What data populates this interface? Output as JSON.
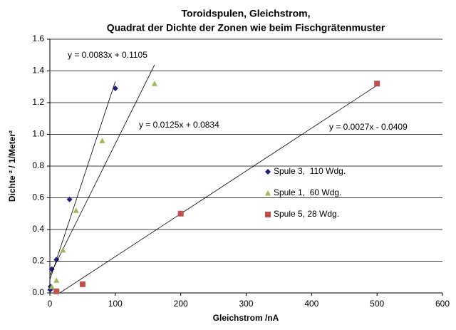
{
  "chart_data": {
    "type": "scatter",
    "title": [
      "Toroidspulen, Gleichstrom,",
      "Quadrat der Dichte der Zonen wie beim Fischgrätenmuster"
    ],
    "x_label": "Gleichstrom /nA",
    "y_label": "Dichte ² / 1/Meter²",
    "xlim": [
      0,
      600
    ],
    "xticks": [
      0,
      100,
      200,
      300,
      400,
      500,
      600
    ],
    "ylim": [
      0,
      1.6
    ],
    "yticks": [
      {
        "value": 0,
        "label": "0.0"
      },
      0.2,
      0.4,
      0.6,
      0.8,
      {
        "value": 1,
        "label": "1.0"
      },
      1.2,
      1.4,
      1.6
    ],
    "grid": true,
    "series": [
      {
        "name": "Spule 3,  110 Wdg.",
        "color": "#1f1f7a",
        "marker": "diamond",
        "x": [
          0.5,
          1,
          3,
          10,
          30,
          100
        ],
        "values": [
          0.02,
          0.04,
          0.15,
          0.21,
          0.59,
          1.29
        ],
        "trendline": {
          "label": "y = 0.0125x + 0.0834",
          "x": [
            0,
            100
          ]
        }
      },
      {
        "name": "Spule 1,  60 Wdg.",
        "color": "#9bbb59",
        "marker": "triangle",
        "x": [
          3,
          10,
          20,
          40,
          80,
          160
        ],
        "values": [
          0.04,
          0.08,
          0.27,
          0.52,
          0.96,
          1.32
        ],
        "trendline": {
          "label": "y = 0.0083x + 0.1105",
          "x": [
            0,
            160
          ]
        }
      },
      {
        "name": "Spule 5, 28 Wdg.",
        "color": "#c0504d",
        "marker": "square",
        "x": [
          10,
          50,
          200,
          500
        ],
        "values": [
          0.01,
          0.055,
          0.5,
          1.32
        ],
        "trendline": {
          "label": "y = 0.0027x - 0.0409",
          "x": [
            15,
            500
          ]
        }
      }
    ]
  }
}
